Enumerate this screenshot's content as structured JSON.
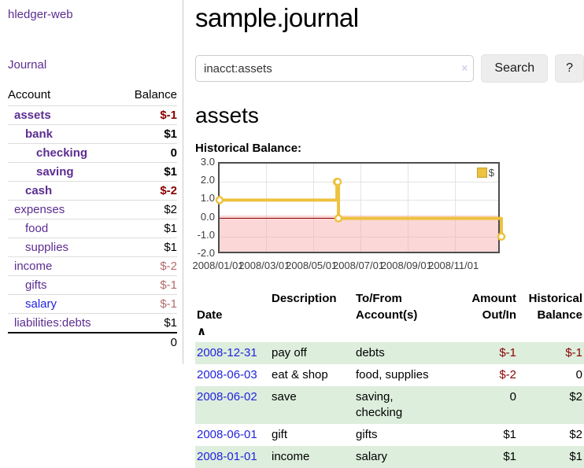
{
  "app": {
    "brand": "hledger-web",
    "nav_journal_label": "Journal"
  },
  "colors": {
    "accent_purple": "#5c2d91",
    "link_blue": "#2323dd",
    "negative_strong": "#8b0000",
    "negative_muted": "#b36b6b",
    "row_green": "#ddeedd",
    "chart_line": "#EDC240",
    "chart_negative_fill": "#fbd7d7",
    "zero_line": "#8b0000"
  },
  "sidebar": {
    "headers": {
      "account": "Account",
      "balance": "Balance"
    },
    "accounts": [
      {
        "name": "assets",
        "balance": "$-1",
        "level": 1,
        "bold": true,
        "link": "purple",
        "balance_class": "neg-strong"
      },
      {
        "name": "bank",
        "balance": "$1",
        "level": 2,
        "bold": true,
        "link": "purple",
        "balance_class": "strong"
      },
      {
        "name": "checking",
        "balance": "0",
        "level": 3,
        "bold": true,
        "link": "purple",
        "balance_class": "strong"
      },
      {
        "name": "saving",
        "balance": "$1",
        "level": 3,
        "bold": true,
        "link": "purple",
        "balance_class": "strong"
      },
      {
        "name": "cash",
        "balance": "$-2",
        "level": 2,
        "bold": true,
        "link": "purple",
        "balance_class": "neg-strong"
      },
      {
        "name": "expenses",
        "balance": "$2",
        "level": 1,
        "bold": false,
        "link": "purple",
        "balance_class": "plain"
      },
      {
        "name": "food",
        "balance": "$1",
        "level": 2,
        "bold": false,
        "link": "purple",
        "balance_class": "plain"
      },
      {
        "name": "supplies",
        "balance": "$1",
        "level": 2,
        "bold": false,
        "link": "purple",
        "balance_class": "plain"
      },
      {
        "name": "income",
        "balance": "$-2",
        "level": 1,
        "bold": false,
        "link": "purple",
        "balance_class": "neg-muted"
      },
      {
        "name": "gifts",
        "balance": "$-1",
        "level": 2,
        "bold": false,
        "link": "purple",
        "balance_class": "neg-muted"
      },
      {
        "name": "salary",
        "balance": "$-1",
        "level": 2,
        "bold": false,
        "link": "blue",
        "balance_class": "neg-muted"
      },
      {
        "name": "liabilities:debts",
        "balance": "$1",
        "level": 1,
        "bold": false,
        "link": "purple",
        "balance_class": "plain"
      }
    ],
    "total": "0"
  },
  "header": {
    "title": "sample.journal"
  },
  "search": {
    "value": "inacct:assets",
    "clear_icon": "×",
    "button_label": "Search",
    "help_label": "?"
  },
  "account_page": {
    "title": "assets",
    "chart_label": "Historical Balance:"
  },
  "chart_data": {
    "type": "line",
    "step": true,
    "title": "Historical Balance:",
    "series": [
      {
        "name": "$",
        "color": "#EDC240",
        "points": [
          {
            "date": "2008-01-01",
            "value": 1
          },
          {
            "date": "2008-06-01",
            "value": 2
          },
          {
            "date": "2008-06-02",
            "value": 2
          },
          {
            "date": "2008-06-03",
            "value": 0
          },
          {
            "date": "2008-12-31",
            "value": -1
          }
        ]
      }
    ],
    "ylim": [
      -2,
      3
    ],
    "yticks": [
      "3.0",
      "2.0",
      "1.0",
      "0.0",
      "-1.0",
      "-2.0"
    ],
    "xticks": [
      "2008/01/01",
      "2008/03/01",
      "2008/05/01",
      "2008/07/01",
      "2008/09/01",
      "2008/11/01"
    ],
    "x_range_days": 365,
    "legend": {
      "swatch_color": "#EDC240",
      "label": "$",
      "position": "top-right"
    },
    "grid": true,
    "negative_region": true
  },
  "register": {
    "sort_icon": "∧",
    "columns": [
      {
        "label": "Date",
        "align": "left",
        "sorted": "asc"
      },
      {
        "label": "Description",
        "align": "left"
      },
      {
        "label": "To/From\nAccount(s)",
        "align": "left"
      },
      {
        "label": "Amount\nOut/In",
        "align": "right"
      },
      {
        "label": "Historical\nBalance",
        "align": "right"
      }
    ],
    "rows": [
      {
        "date": "2008-12-31",
        "description": "pay off",
        "accounts": "debts",
        "amount": "$-1",
        "amount_neg": true,
        "balance": "$-1",
        "balance_neg": true,
        "shaded": true
      },
      {
        "date": "2008-06-03",
        "description": "eat & shop",
        "accounts": "food, supplies",
        "amount": "$-2",
        "amount_neg": true,
        "balance": "0",
        "balance_neg": false,
        "shaded": false
      },
      {
        "date": "2008-06-02",
        "description": "save",
        "accounts": "saving,\nchecking",
        "amount": "0",
        "amount_neg": false,
        "balance": "$2",
        "balance_neg": false,
        "shaded": true
      },
      {
        "date": "2008-06-01",
        "description": "gift",
        "accounts": "gifts",
        "amount": "$1",
        "amount_neg": false,
        "balance": "$2",
        "balance_neg": false,
        "shaded": false
      },
      {
        "date": "2008-01-01",
        "description": "income",
        "accounts": "salary",
        "amount": "$1",
        "amount_neg": false,
        "balance": "$1",
        "balance_neg": false,
        "shaded": true
      }
    ]
  }
}
